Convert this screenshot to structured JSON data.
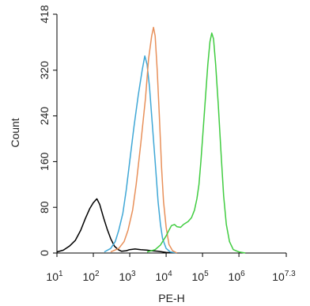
{
  "chart_data": {
    "type": "line",
    "title": "",
    "xlabel": "PE-H",
    "ylabel": "Count",
    "x_scale": "log10",
    "xlim": [
      10,
      20000000
    ],
    "ylim": [
      0,
      418
    ],
    "y_ticks": [
      0,
      80,
      160,
      240,
      320,
      418
    ],
    "y_tick_labels": [
      "0",
      "80",
      "160",
      "240",
      "320",
      "418"
    ],
    "x_ticks": [
      {
        "base": "10",
        "exp": "1",
        "value": 10
      },
      {
        "base": "10",
        "exp": "2",
        "value": 100
      },
      {
        "base": "10",
        "exp": "3",
        "value": 1000
      },
      {
        "base": "10",
        "exp": "4",
        "value": 10000
      },
      {
        "base": "10",
        "exp": "5",
        "value": 100000
      },
      {
        "base": "10",
        "exp": "6",
        "value": 1000000
      },
      {
        "base": "10",
        "exp": "7.3",
        "value": 20000000
      }
    ],
    "grid": false,
    "legend": "none",
    "series": [
      {
        "color": "#000000",
        "points": [
          [
            10,
            2
          ],
          [
            15,
            5
          ],
          [
            22,
            12
          ],
          [
            32,
            22
          ],
          [
            45,
            40
          ],
          [
            60,
            60
          ],
          [
            80,
            78
          ],
          [
            100,
            88
          ],
          [
            125,
            95
          ],
          [
            150,
            85
          ],
          [
            190,
            62
          ],
          [
            240,
            42
          ],
          [
            300,
            25
          ],
          [
            380,
            12
          ],
          [
            480,
            6
          ],
          [
            600,
            3
          ],
          [
            800,
            4
          ],
          [
            1000,
            6
          ],
          [
            1400,
            7
          ],
          [
            2000,
            6
          ],
          [
            3000,
            5
          ],
          [
            4000,
            4
          ],
          [
            6000,
            3
          ],
          [
            10000,
            1
          ],
          [
            20000,
            0
          ]
        ]
      },
      {
        "color": "#3fa7d6",
        "points": [
          [
            200,
            2
          ],
          [
            300,
            8
          ],
          [
            400,
            20
          ],
          [
            500,
            40
          ],
          [
            650,
            70
          ],
          [
            800,
            110
          ],
          [
            1000,
            160
          ],
          [
            1300,
            220
          ],
          [
            1700,
            275
          ],
          [
            2200,
            320
          ],
          [
            2600,
            345
          ],
          [
            3000,
            330
          ],
          [
            3500,
            290
          ],
          [
            4000,
            240
          ],
          [
            5000,
            160
          ],
          [
            6000,
            90
          ],
          [
            7000,
            50
          ],
          [
            8000,
            25
          ],
          [
            10000,
            8
          ],
          [
            13000,
            2
          ],
          [
            20000,
            0
          ]
        ]
      },
      {
        "color": "#e8905a",
        "points": [
          [
            300,
            2
          ],
          [
            500,
            8
          ],
          [
            700,
            20
          ],
          [
            900,
            40
          ],
          [
            1200,
            75
          ],
          [
            1500,
            120
          ],
          [
            2000,
            190
          ],
          [
            2700,
            270
          ],
          [
            3300,
            340
          ],
          [
            4000,
            380
          ],
          [
            4500,
            395
          ],
          [
            5000,
            380
          ],
          [
            5700,
            320
          ],
          [
            6500,
            240
          ],
          [
            7500,
            150
          ],
          [
            8500,
            90
          ],
          [
            10000,
            45
          ],
          [
            12000,
            15
          ],
          [
            15000,
            4
          ],
          [
            20000,
            0
          ]
        ]
      },
      {
        "color": "#40cc40",
        "points": [
          [
            3000,
            2
          ],
          [
            5000,
            6
          ],
          [
            7000,
            14
          ],
          [
            10000,
            30
          ],
          [
            12000,
            40
          ],
          [
            14000,
            48
          ],
          [
            17000,
            50
          ],
          [
            20000,
            46
          ],
          [
            25000,
            45
          ],
          [
            30000,
            50
          ],
          [
            40000,
            55
          ],
          [
            50000,
            62
          ],
          [
            60000,
            75
          ],
          [
            70000,
            95
          ],
          [
            80000,
            120
          ],
          [
            90000,
            160
          ],
          [
            100000,
            200
          ],
          [
            120000,
            270
          ],
          [
            140000,
            330
          ],
          [
            160000,
            370
          ],
          [
            180000,
            385
          ],
          [
            200000,
            375
          ],
          [
            230000,
            330
          ],
          [
            270000,
            260
          ],
          [
            320000,
            180
          ],
          [
            380000,
            100
          ],
          [
            450000,
            50
          ],
          [
            550000,
            20
          ],
          [
            700000,
            6
          ],
          [
            1000000,
            2
          ],
          [
            1500000,
            0
          ]
        ]
      }
    ]
  }
}
